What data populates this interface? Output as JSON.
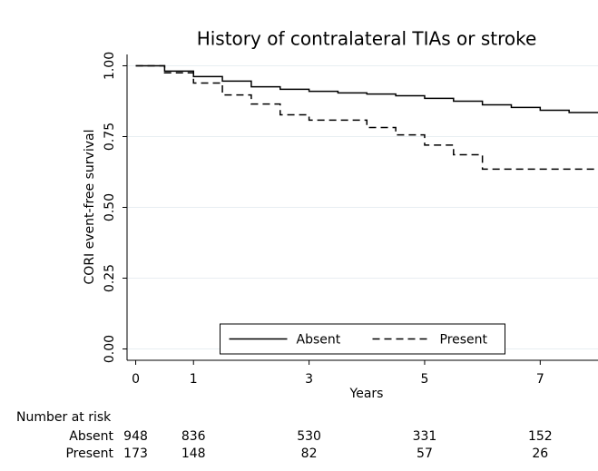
{
  "chart_data": {
    "type": "step",
    "title": "History of contralateral TIAs or stroke",
    "x_label": "Years",
    "y_label": "CORI event-free survival",
    "xlim": [
      -0.15,
      8
    ],
    "ylim": [
      -0.04,
      1.04
    ],
    "xticks": [
      0,
      1,
      3,
      5,
      7
    ],
    "yticks": [
      {
        "value": 0,
        "label": "0.00"
      },
      {
        "value": 0.25,
        "label": "0.25"
      },
      {
        "value": 0.5,
        "label": "0.50"
      },
      {
        "value": 0.75,
        "label": "0.75"
      },
      {
        "value": 1,
        "label": "1.00"
      }
    ],
    "grid": true,
    "legend": "bottom",
    "series": [
      {
        "name": "Absent",
        "color": "#000000",
        "dash": "solid",
        "x": [
          0,
          0.5,
          1,
          1.5,
          2,
          2.5,
          3,
          3.5,
          4,
          4.5,
          5,
          5.5,
          6,
          6.5,
          7,
          7.5,
          8
        ],
        "values": [
          1.0,
          0.981,
          0.962,
          0.946,
          0.926,
          0.917,
          0.91,
          0.904,
          0.9,
          0.894,
          0.885,
          0.875,
          0.862,
          0.853,
          0.843,
          0.835,
          0.835
        ]
      },
      {
        "name": "Present",
        "color": "#000000",
        "dash": "dashed",
        "x": [
          0,
          0.5,
          1,
          1.5,
          2,
          2.5,
          3,
          4,
          4.5,
          5,
          5.5,
          6,
          8
        ],
        "values": [
          1.0,
          0.975,
          0.939,
          0.897,
          0.865,
          0.827,
          0.808,
          0.782,
          0.756,
          0.72,
          0.686,
          0.635,
          0.635
        ]
      }
    ],
    "risk_table": {
      "title": "Number at risk",
      "rows": [
        {
          "name": "Absent",
          "values": [
            948,
            836,
            530,
            331,
            152
          ]
        },
        {
          "name": "Present",
          "values": [
            173,
            148,
            82,
            57,
            26
          ]
        }
      ]
    }
  }
}
